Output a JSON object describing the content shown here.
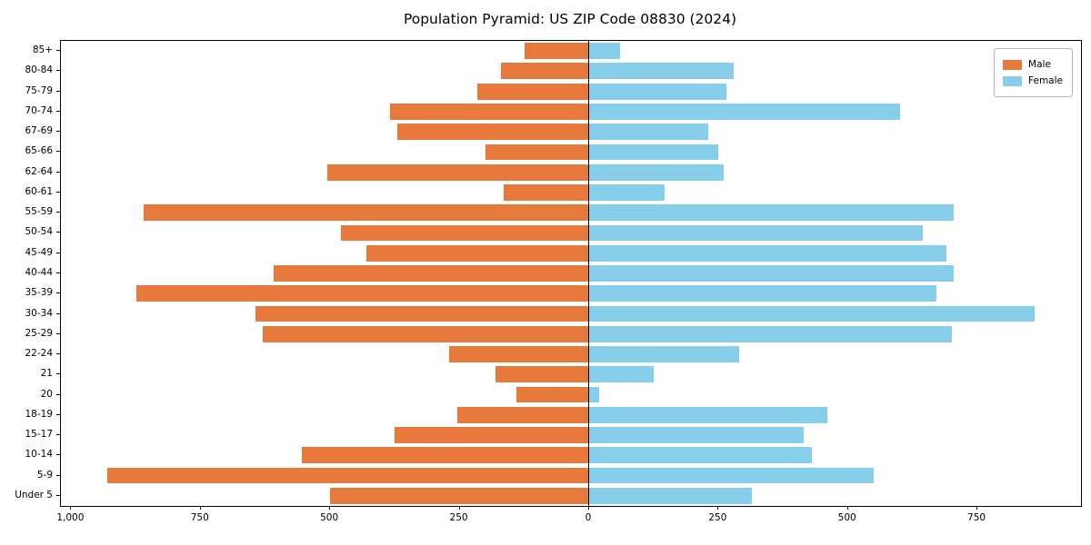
{
  "chart_data": {
    "type": "bar",
    "variant": "population-pyramid",
    "title": "Population Pyramid: US ZIP Code 08830 (2024)",
    "categories_top_to_bottom": [
      "85+",
      "80-84",
      "75-79",
      "70-74",
      "67-69",
      "65-66",
      "62-64",
      "60-61",
      "55-59",
      "50-54",
      "45-49",
      "40-44",
      "35-39",
      "30-34",
      "25-29",
      "22-24",
      "21",
      "20",
      "18-19",
      "15-17",
      "10-14",
      "5-9",
      "Under 5"
    ],
    "series": [
      {
        "name": "Male",
        "side": "left",
        "color": "#e8793d",
        "values": [
          125,
          170,
          215,
          385,
          370,
          200,
          505,
          165,
          860,
          480,
          430,
          610,
          875,
          645,
          630,
          270,
          180,
          140,
          255,
          375,
          555,
          930,
          500
        ]
      },
      {
        "name": "Female",
        "side": "right",
        "color": "#87ceeb",
        "values": [
          60,
          280,
          265,
          600,
          230,
          250,
          260,
          145,
          705,
          645,
          690,
          705,
          670,
          860,
          700,
          290,
          125,
          20,
          460,
          415,
          430,
          550,
          315
        ]
      }
    ],
    "xlim": [
      -1020,
      950
    ],
    "x_ticks": [
      {
        "value": -1000,
        "label": "1,000"
      },
      {
        "value": -750,
        "label": "750"
      },
      {
        "value": -500,
        "label": "500"
      },
      {
        "value": -250,
        "label": "250"
      },
      {
        "value": 0,
        "label": "0"
      },
      {
        "value": 250,
        "label": "250"
      },
      {
        "value": 500,
        "label": "500"
      },
      {
        "value": 750,
        "label": "750"
      }
    ],
    "legend": {
      "position": "upper-right",
      "entries": [
        "Male",
        "Female"
      ]
    },
    "grid": false,
    "zero_line_color": "#000000"
  }
}
